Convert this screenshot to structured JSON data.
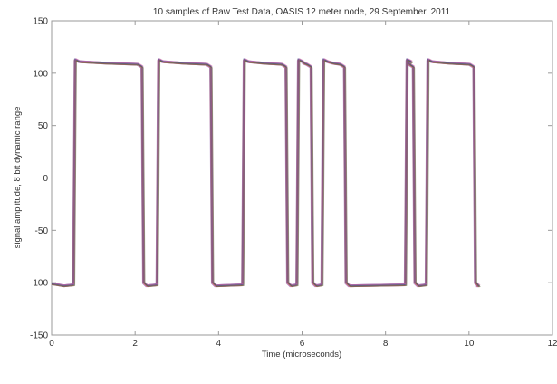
{
  "chart_data": {
    "type": "line",
    "title": "10 samples of Raw Test Data, OASIS 12 meter node, 29 September, 2011",
    "xlabel": "Time (microseconds)",
    "ylabel": "signal amplitude, 8 bit dynamic range",
    "xlim": [
      0,
      12
    ],
    "ylim": [
      -150,
      150
    ],
    "xticks": [
      "0",
      "2",
      "4",
      "6",
      "8",
      "10",
      "12"
    ],
    "yticks": [
      "-150",
      "-100",
      "-50",
      "0",
      "50",
      "100",
      "150"
    ],
    "grid": false,
    "levels": {
      "high": 110,
      "low": -102
    },
    "pulses": [
      {
        "start": 0.55,
        "end": 2.15
      },
      {
        "start": 2.55,
        "end": 3.8
      },
      {
        "start": 4.6,
        "end": 5.6
      },
      {
        "start": 5.9,
        "end": 6.2
      },
      {
        "start": 6.5,
        "end": 7.0
      },
      {
        "start": 8.5,
        "end": 8.65
      },
      {
        "start": 9.0,
        "end": 10.1
      }
    ],
    "series_colors": [
      "#7b3fa0",
      "#c0504d",
      "#3b4a9a",
      "#d06aa0",
      "#5a6a3a"
    ],
    "sample_count": 10
  }
}
